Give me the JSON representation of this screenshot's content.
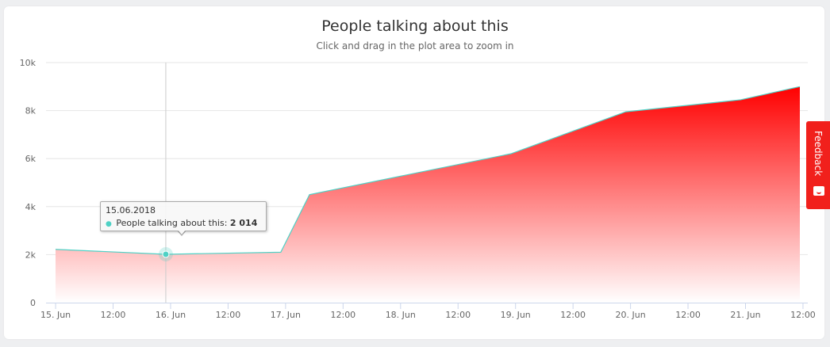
{
  "chart_data": {
    "type": "area",
    "title": "People talking about this",
    "subtitle": "Click and drag in the plot area to zoom in",
    "y_ticks": [
      "0",
      "2k",
      "4k",
      "6k",
      "8k",
      "10k"
    ],
    "ylim": [
      0,
      10000
    ],
    "x_ticks": [
      "15. Jun",
      "12:00",
      "16. Jun",
      "12:00",
      "17. Jun",
      "12:00",
      "18. Jun",
      "12:00",
      "19. Jun",
      "12:00",
      "20. Jun",
      "12:00",
      "21. Jun",
      "12:00"
    ],
    "x_tick_hours": [
      0,
      12,
      24,
      36,
      48,
      60,
      72,
      84,
      96,
      108,
      120,
      132,
      144,
      156
    ],
    "xlim_hours": [
      -2,
      157
    ],
    "series": [
      {
        "name": "People talking about this",
        "color": "#4fd1c5",
        "fill_top": "#ff0000",
        "fill_bottom": "#ffffff",
        "points": [
          {
            "x": "2018-06-14T22:00",
            "hours": -1,
            "y": 2220
          },
          {
            "x": "2018-06-15T22:00",
            "hours": 23,
            "y": 2014
          },
          {
            "x": "2018-06-16T22:00",
            "hours": 47,
            "y": 2100
          },
          {
            "x": "2018-06-17T05:00",
            "hours": 53,
            "y": 4500
          },
          {
            "x": "2018-06-18T22:00",
            "hours": 95,
            "y": 6200
          },
          {
            "x": "2018-06-19T22:00",
            "hours": 119,
            "y": 7950
          },
          {
            "x": "2018-06-20T22:00",
            "hours": 143,
            "y": 8450
          },
          {
            "x": "2018-06-21T22:00",
            "hours": 167,
            "y": 9000
          }
        ]
      }
    ],
    "grid": true,
    "legend": "none"
  },
  "tooltip": {
    "date": "15.06.2018",
    "series_label": "People talking about this:",
    "value": "2 014",
    "point_index": 1
  },
  "feedback": {
    "label": "Feedback",
    "color": "#f1201c"
  }
}
